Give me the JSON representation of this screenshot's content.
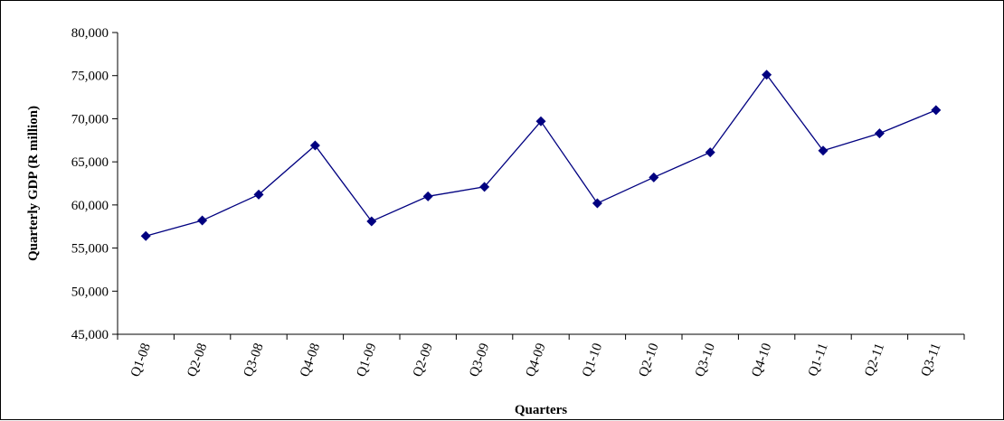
{
  "chart_data": {
    "type": "line",
    "title": "",
    "xlabel": "Quarters",
    "ylabel": "Quarterly GDP (R million)",
    "categories": [
      "Q1-08",
      "Q2-08",
      "Q3-08",
      "Q4-08",
      "Q1-09",
      "Q2-09",
      "Q3-09",
      "Q4-09",
      "Q1-10",
      "Q2-10",
      "Q3-10",
      "Q4-10",
      "Q1-11",
      "Q2-11",
      "Q3-11"
    ],
    "series": [
      {
        "values": [
          56400,
          58200,
          61200,
          66900,
          58100,
          61000,
          62100,
          69700,
          60200,
          63200,
          66100,
          75100,
          66300,
          68300,
          71000
        ],
        "color": "#000080",
        "marker": "diamond"
      }
    ],
    "ylim": [
      45000,
      80000
    ],
    "yticks": [
      45000,
      50000,
      55000,
      60000,
      65000,
      70000,
      75000,
      80000
    ],
    "ytick_labels": [
      "45,000",
      "50,000",
      "55,000",
      "60,000",
      "65,000",
      "70,000",
      "75,000",
      "80,000"
    ],
    "grid": false,
    "legend": "none"
  }
}
